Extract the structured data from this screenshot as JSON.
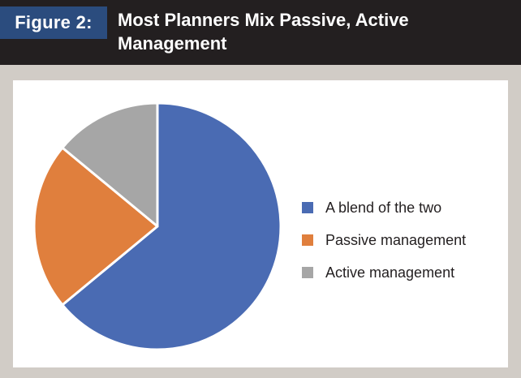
{
  "figure": {
    "label": "Figure 2:",
    "title": "Most Planners Mix Passive, Active Management"
  },
  "chart_data": {
    "type": "pie",
    "title": "Most Planners Mix Passive, Active Management",
    "slices": [
      {
        "label": "A blend of the two",
        "value": 64,
        "color": "#4a6bb3"
      },
      {
        "label": "Passive management",
        "value": 22,
        "color": "#e07f3d"
      },
      {
        "label": "Active management",
        "value": 14,
        "color": "#a6a6a6"
      }
    ],
    "start_angle_deg": 0,
    "direction": "clockwise",
    "legend_position": "right"
  }
}
